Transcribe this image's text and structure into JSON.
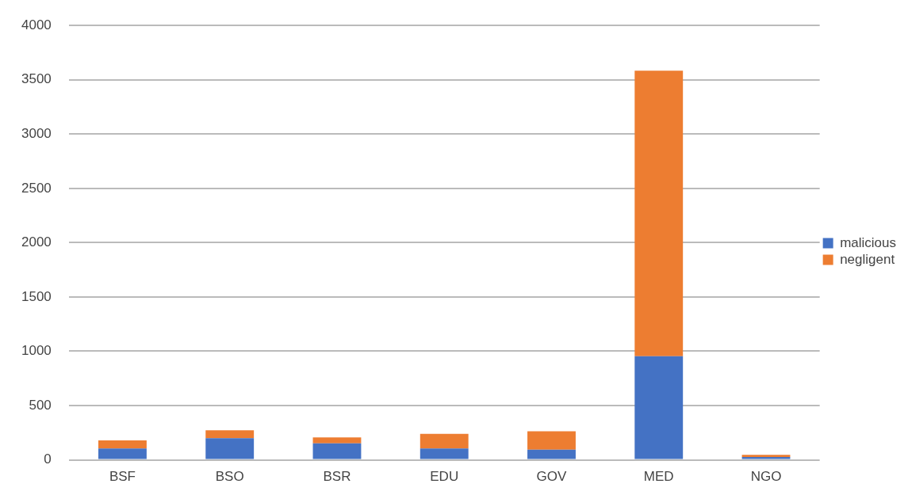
{
  "chart_data": {
    "type": "bar",
    "stacked": true,
    "categories": [
      "BSF",
      "BSO",
      "BSR",
      "EDU",
      "GOV",
      "MED",
      "NGO"
    ],
    "series": [
      {
        "name": "malicious",
        "color": "#4472c4",
        "values": [
          105,
          200,
          152,
          105,
          93,
          955,
          26
        ]
      },
      {
        "name": "negligent",
        "color": "#ed7d31",
        "values": [
          75,
          72,
          55,
          134,
          170,
          2629,
          21
        ]
      }
    ],
    "ylim": [
      0,
      4000
    ],
    "yticks": [
      0,
      500,
      1000,
      1500,
      2000,
      2500,
      3000,
      3500,
      4000
    ],
    "grid": "y",
    "legend": "right"
  }
}
